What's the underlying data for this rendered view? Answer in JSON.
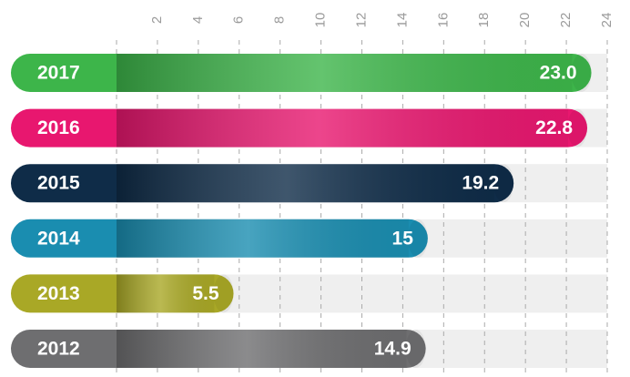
{
  "chart_data": {
    "type": "bar",
    "orientation": "horizontal",
    "categories": [
      "2017",
      "2016",
      "2015",
      "2014",
      "2013",
      "2012"
    ],
    "values": [
      23.0,
      22.8,
      19.2,
      15,
      5.5,
      14.9
    ],
    "value_labels": [
      "23.0",
      "22.8",
      "19.2",
      "15",
      "5.5",
      "14.9"
    ],
    "colors": [
      "#3db54a",
      "#e8176f",
      "#0f2c48",
      "#1a8db0",
      "#a9a826",
      "#6e6e70"
    ],
    "xlim": [
      0,
      24
    ],
    "xticks": [
      2,
      4,
      6,
      8,
      10,
      12,
      14,
      16,
      18,
      20,
      22,
      24
    ],
    "grid": true
  }
}
